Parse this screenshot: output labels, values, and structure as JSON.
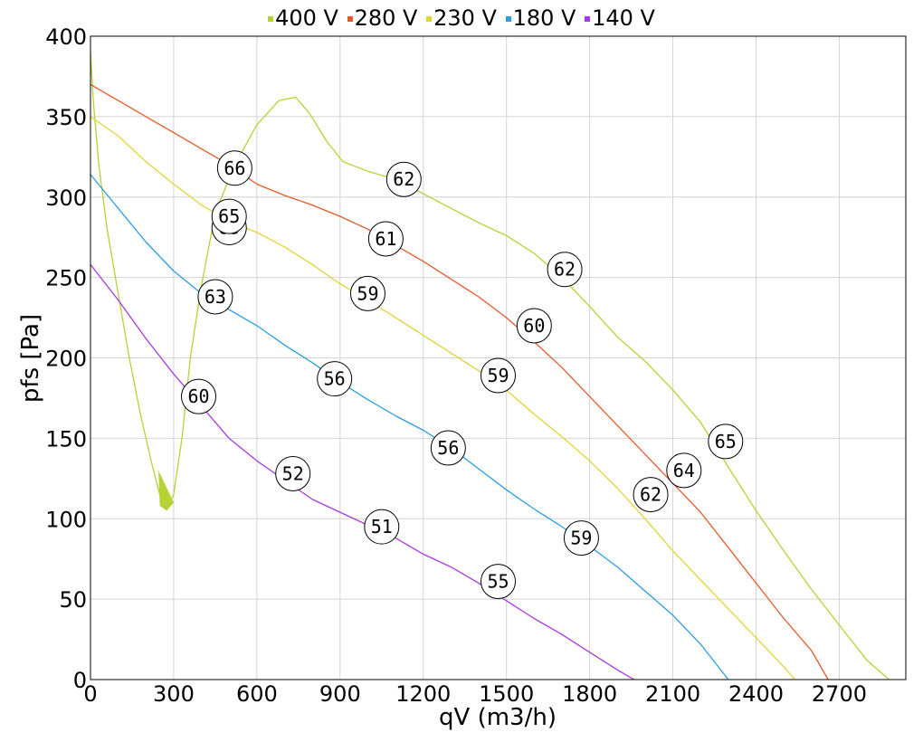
{
  "chart_data": {
    "type": "line",
    "xlabel": "qV (m3/h)",
    "ylabel": "pfs [Pa]",
    "xlim": [
      0,
      2940
    ],
    "ylim": [
      0,
      400
    ],
    "x_ticks": [
      0,
      300,
      600,
      900,
      1200,
      1500,
      1800,
      2100,
      2400,
      2700
    ],
    "y_ticks": [
      0,
      50,
      100,
      150,
      200,
      250,
      300,
      350,
      400
    ],
    "grid": true,
    "legend_position": "top-center",
    "series": [
      {
        "name": "400 V",
        "color": "#b5d334",
        "points": [
          [
            0,
            390
          ],
          [
            10,
            360
          ],
          [
            30,
            320
          ],
          [
            60,
            280
          ],
          [
            100,
            240
          ],
          [
            140,
            200
          ],
          [
            180,
            165
          ],
          [
            220,
            135
          ],
          [
            250,
            115
          ],
          [
            275,
            106
          ],
          [
            300,
            115
          ],
          [
            330,
            150
          ],
          [
            360,
            200
          ],
          [
            400,
            245
          ],
          [
            450,
            290
          ],
          [
            520,
            320
          ],
          [
            600,
            345
          ],
          [
            680,
            360
          ],
          [
            740,
            362
          ],
          [
            790,
            352
          ],
          [
            850,
            335
          ],
          [
            910,
            322
          ],
          [
            1000,
            316
          ],
          [
            1100,
            311
          ],
          [
            1200,
            302
          ],
          [
            1300,
            293
          ],
          [
            1400,
            284
          ],
          [
            1500,
            276
          ],
          [
            1600,
            265
          ],
          [
            1700,
            250
          ],
          [
            1800,
            232
          ],
          [
            1900,
            213
          ],
          [
            2000,
            198
          ],
          [
            2100,
            180
          ],
          [
            2200,
            160
          ],
          [
            2300,
            132
          ],
          [
            2400,
            105
          ],
          [
            2500,
            80
          ],
          [
            2600,
            56
          ],
          [
            2700,
            34
          ],
          [
            2800,
            12
          ],
          [
            2880,
            0
          ]
        ],
        "labels": [
          {
            "x": 520,
            "y": 318,
            "text": "66"
          },
          {
            "x": 1130,
            "y": 311,
            "text": "62"
          },
          {
            "x": 1710,
            "y": 255,
            "text": "62"
          },
          {
            "x": 2290,
            "y": 148,
            "text": "65"
          }
        ]
      },
      {
        "name": "280 V",
        "color": "#e55a2b",
        "points": [
          [
            0,
            370
          ],
          [
            100,
            360
          ],
          [
            200,
            350
          ],
          [
            300,
            340
          ],
          [
            400,
            330
          ],
          [
            500,
            320
          ],
          [
            600,
            308
          ],
          [
            700,
            301
          ],
          [
            800,
            295
          ],
          [
            900,
            288
          ],
          [
            1000,
            280
          ],
          [
            1100,
            270
          ],
          [
            1200,
            260
          ],
          [
            1300,
            249
          ],
          [
            1400,
            238
          ],
          [
            1500,
            225
          ],
          [
            1600,
            210
          ],
          [
            1700,
            194
          ],
          [
            1800,
            176
          ],
          [
            1900,
            158
          ],
          [
            2000,
            140
          ],
          [
            2100,
            122
          ],
          [
            2200,
            104
          ],
          [
            2300,
            82
          ],
          [
            2400,
            60
          ],
          [
            2500,
            38
          ],
          [
            2600,
            18
          ],
          [
            2660,
            0
          ]
        ],
        "labels": [
          {
            "x": 500,
            "y": 281,
            "text": "65"
          },
          {
            "x": 1065,
            "y": 274,
            "text": "61"
          },
          {
            "x": 1600,
            "y": 220,
            "text": "60"
          },
          {
            "x": 2140,
            "y": 130,
            "text": "64"
          }
        ]
      },
      {
        "name": "230 V",
        "color": "#e0d531",
        "points": [
          [
            0,
            350
          ],
          [
            100,
            338
          ],
          [
            200,
            322
          ],
          [
            300,
            308
          ],
          [
            400,
            295
          ],
          [
            500,
            285
          ],
          [
            600,
            278
          ],
          [
            700,
            269
          ],
          [
            800,
            258
          ],
          [
            900,
            246
          ],
          [
            1000,
            236
          ],
          [
            1100,
            225
          ],
          [
            1200,
            214
          ],
          [
            1300,
            203
          ],
          [
            1400,
            192
          ],
          [
            1500,
            180
          ],
          [
            1600,
            165
          ],
          [
            1700,
            151
          ],
          [
            1800,
            136
          ],
          [
            1900,
            119
          ],
          [
            2000,
            100
          ],
          [
            2100,
            80
          ],
          [
            2200,
            62
          ],
          [
            2300,
            44
          ],
          [
            2400,
            26
          ],
          [
            2500,
            8
          ],
          [
            2540,
            0
          ]
        ],
        "labels": [
          {
            "x": 500,
            "y": 288,
            "text": "65"
          },
          {
            "x": 1000,
            "y": 240,
            "text": "59"
          },
          {
            "x": 1470,
            "y": 189,
            "text": "59"
          },
          {
            "x": 2020,
            "y": 115,
            "text": "62"
          }
        ]
      },
      {
        "name": "180 V",
        "color": "#2b9de0",
        "points": [
          [
            0,
            314
          ],
          [
            100,
            293
          ],
          [
            200,
            272
          ],
          [
            300,
            254
          ],
          [
            400,
            240
          ],
          [
            500,
            230
          ],
          [
            600,
            220
          ],
          [
            700,
            208
          ],
          [
            800,
            197
          ],
          [
            900,
            185
          ],
          [
            1000,
            174
          ],
          [
            1100,
            164
          ],
          [
            1200,
            155
          ],
          [
            1300,
            144
          ],
          [
            1400,
            131
          ],
          [
            1500,
            118
          ],
          [
            1600,
            106
          ],
          [
            1700,
            95
          ],
          [
            1800,
            83
          ],
          [
            1900,
            70
          ],
          [
            2000,
            55
          ],
          [
            2100,
            40
          ],
          [
            2200,
            22
          ],
          [
            2300,
            0
          ]
        ],
        "labels": [
          {
            "x": 450,
            "y": 238,
            "text": "63"
          },
          {
            "x": 880,
            "y": 187,
            "text": "56"
          },
          {
            "x": 1290,
            "y": 144,
            "text": "56"
          },
          {
            "x": 1770,
            "y": 88,
            "text": "59"
          }
        ]
      },
      {
        "name": "140 V",
        "color": "#a73be0",
        "points": [
          [
            0,
            258
          ],
          [
            100,
            236
          ],
          [
            200,
            212
          ],
          [
            300,
            190
          ],
          [
            400,
            170
          ],
          [
            500,
            150
          ],
          [
            600,
            136
          ],
          [
            700,
            124
          ],
          [
            800,
            112
          ],
          [
            900,
            104
          ],
          [
            1000,
            96
          ],
          [
            1100,
            88
          ],
          [
            1200,
            78
          ],
          [
            1300,
            70
          ],
          [
            1400,
            60
          ],
          [
            1500,
            49
          ],
          [
            1600,
            38
          ],
          [
            1700,
            28
          ],
          [
            1800,
            17
          ],
          [
            1900,
            6
          ],
          [
            1960,
            0
          ]
        ],
        "labels": [
          {
            "x": 390,
            "y": 176,
            "text": "60"
          },
          {
            "x": 730,
            "y": 128,
            "text": "52"
          },
          {
            "x": 1050,
            "y": 95,
            "text": "51"
          },
          {
            "x": 1470,
            "y": 61,
            "text": "55"
          }
        ]
      }
    ],
    "fill_region": {
      "color": "#b5d334",
      "points": [
        [
          245,
          130
        ],
        [
          250,
          108
        ],
        [
          275,
          105
        ],
        [
          300,
          110
        ]
      ]
    }
  }
}
